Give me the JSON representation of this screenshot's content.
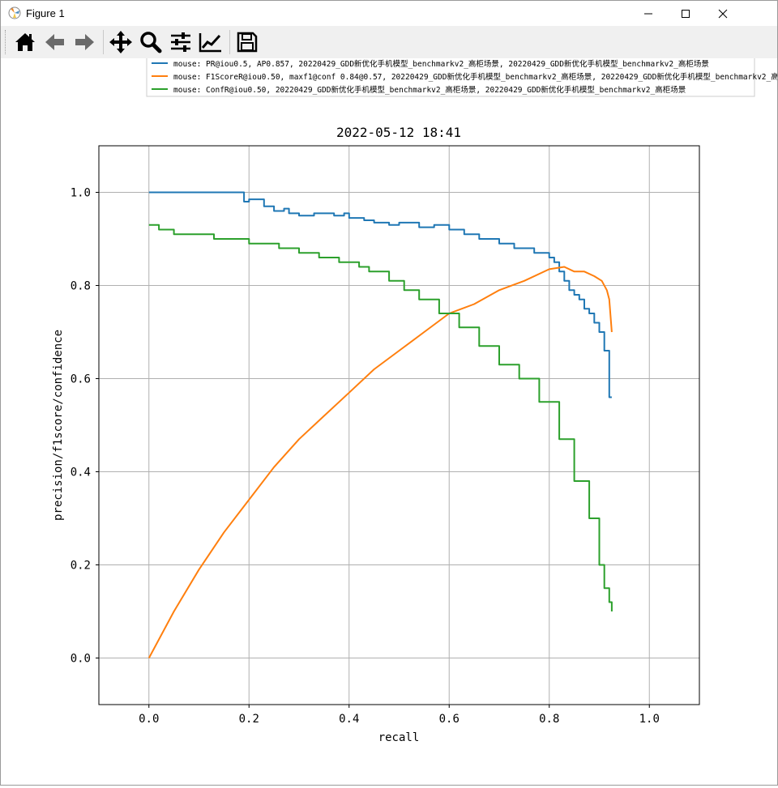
{
  "window": {
    "title": "Figure 1"
  },
  "toolbar": {
    "buttons": [
      {
        "name": "home-icon",
        "label": "Home"
      },
      {
        "name": "back-arrow-icon",
        "label": "Back"
      },
      {
        "name": "forward-arrow-icon",
        "label": "Forward"
      },
      {
        "name": "pan-move-icon",
        "label": "Pan"
      },
      {
        "name": "zoom-magnifier-icon",
        "label": "Zoom"
      },
      {
        "name": "configure-subplots-icon",
        "label": "Subplots"
      },
      {
        "name": "edit-axis-icon",
        "label": "Customize"
      },
      {
        "name": "save-floppy-icon",
        "label": "Save"
      }
    ]
  },
  "chart_data": {
    "type": "line",
    "title": "2022-05-12 18:41",
    "xlabel": "recall",
    "ylabel": "precision/f1score/confidence",
    "xlim": [
      -0.1,
      1.1
    ],
    "ylim": [
      -0.1,
      1.1
    ],
    "xticks": [
      "0.0",
      "0.2",
      "0.4",
      "0.6",
      "0.8",
      "1.0"
    ],
    "yticks": [
      "0.0",
      "0.2",
      "0.4",
      "0.6",
      "0.8",
      "1.0"
    ],
    "grid": true,
    "legend_position": "top, above plot",
    "series": [
      {
        "name": "mouse: PR@iou0.5, AP0.857, 20220429_GDD新优化手机模型_benchmarkv2_高柜场景, 20220429_GDD新优化手机模型_benchmarkv2_高柜场景",
        "color": "#1f77b4",
        "x": [
          0.0,
          0.19,
          0.19,
          0.2,
          0.2,
          0.23,
          0.23,
          0.25,
          0.25,
          0.27,
          0.27,
          0.28,
          0.28,
          0.3,
          0.3,
          0.33,
          0.33,
          0.37,
          0.37,
          0.39,
          0.39,
          0.4,
          0.4,
          0.43,
          0.43,
          0.45,
          0.45,
          0.48,
          0.48,
          0.5,
          0.5,
          0.54,
          0.54,
          0.57,
          0.57,
          0.6,
          0.6,
          0.63,
          0.63,
          0.66,
          0.66,
          0.7,
          0.7,
          0.73,
          0.73,
          0.77,
          0.77,
          0.8,
          0.8,
          0.81,
          0.81,
          0.82,
          0.82,
          0.83,
          0.83,
          0.84,
          0.84,
          0.85,
          0.85,
          0.86,
          0.86,
          0.87,
          0.87,
          0.88,
          0.88,
          0.89,
          0.89,
          0.9,
          0.9,
          0.91,
          0.91,
          0.92,
          0.92,
          0.925
        ],
        "y": [
          1.0,
          1.0,
          0.98,
          0.98,
          0.985,
          0.985,
          0.97,
          0.97,
          0.96,
          0.96,
          0.965,
          0.965,
          0.955,
          0.955,
          0.95,
          0.95,
          0.955,
          0.955,
          0.95,
          0.95,
          0.955,
          0.955,
          0.945,
          0.945,
          0.94,
          0.94,
          0.935,
          0.935,
          0.93,
          0.93,
          0.935,
          0.935,
          0.925,
          0.925,
          0.93,
          0.93,
          0.92,
          0.92,
          0.91,
          0.91,
          0.9,
          0.9,
          0.89,
          0.89,
          0.88,
          0.88,
          0.87,
          0.87,
          0.86,
          0.86,
          0.85,
          0.85,
          0.83,
          0.83,
          0.81,
          0.81,
          0.79,
          0.79,
          0.78,
          0.78,
          0.77,
          0.77,
          0.75,
          0.75,
          0.74,
          0.74,
          0.72,
          0.72,
          0.7,
          0.7,
          0.66,
          0.66,
          0.56,
          0.56
        ]
      },
      {
        "name": "mouse: F1ScoreR@iou0.50, maxf1@conf 0.84@0.57, 20220429_GDD新优化手机模型_benchmarkv2_高柜场景, 20220429_GDD新优化手机模型_benchmarkv2_高柜场景",
        "color": "#ff7f0e",
        "x": [
          0.0,
          0.05,
          0.1,
          0.15,
          0.2,
          0.25,
          0.3,
          0.35,
          0.4,
          0.45,
          0.5,
          0.55,
          0.6,
          0.65,
          0.7,
          0.75,
          0.8,
          0.83,
          0.85,
          0.87,
          0.89,
          0.905,
          0.915,
          0.92,
          0.925
        ],
        "y": [
          0.0,
          0.1,
          0.19,
          0.27,
          0.34,
          0.41,
          0.47,
          0.52,
          0.57,
          0.62,
          0.66,
          0.7,
          0.74,
          0.76,
          0.79,
          0.81,
          0.835,
          0.84,
          0.83,
          0.83,
          0.82,
          0.81,
          0.79,
          0.77,
          0.7
        ]
      },
      {
        "name": "mouse: ConfR@iou0.50, 20220429_GDD新优化手机模型_benchmarkv2_高柜场景, 20220429_GDD新优化手机模型_benchmarkv2_高柜场景",
        "color": "#2ca02c",
        "x": [
          0.0,
          0.02,
          0.02,
          0.05,
          0.05,
          0.13,
          0.13,
          0.2,
          0.2,
          0.26,
          0.26,
          0.3,
          0.3,
          0.34,
          0.34,
          0.38,
          0.38,
          0.42,
          0.42,
          0.44,
          0.44,
          0.48,
          0.48,
          0.51,
          0.51,
          0.54,
          0.54,
          0.58,
          0.58,
          0.62,
          0.62,
          0.66,
          0.66,
          0.7,
          0.7,
          0.74,
          0.74,
          0.78,
          0.78,
          0.82,
          0.82,
          0.85,
          0.85,
          0.88,
          0.88,
          0.9,
          0.9,
          0.91,
          0.91,
          0.92,
          0.92,
          0.925,
          0.925
        ],
        "y": [
          0.93,
          0.93,
          0.92,
          0.92,
          0.91,
          0.91,
          0.9,
          0.9,
          0.89,
          0.89,
          0.88,
          0.88,
          0.87,
          0.87,
          0.86,
          0.86,
          0.85,
          0.85,
          0.84,
          0.84,
          0.83,
          0.83,
          0.81,
          0.81,
          0.79,
          0.79,
          0.77,
          0.77,
          0.74,
          0.74,
          0.71,
          0.71,
          0.67,
          0.67,
          0.63,
          0.63,
          0.6,
          0.6,
          0.55,
          0.55,
          0.47,
          0.47,
          0.38,
          0.38,
          0.3,
          0.3,
          0.2,
          0.2,
          0.15,
          0.15,
          0.12,
          0.12,
          0.1
        ]
      }
    ]
  }
}
